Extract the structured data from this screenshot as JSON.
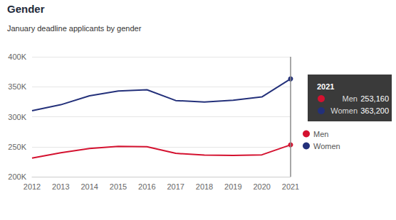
{
  "chart_data": {
    "type": "line",
    "title": "Gender",
    "subtitle": "January deadline applicants by gender",
    "categories": [
      "2012",
      "2013",
      "2014",
      "2015",
      "2016",
      "2017",
      "2018",
      "2019",
      "2020",
      "2021"
    ],
    "series": [
      {
        "name": "Men",
        "color": "#d4112f",
        "values": [
          231000,
          240000,
          247000,
          250500,
          250000,
          239000,
          236000,
          235500,
          236500,
          253160
        ]
      },
      {
        "name": "Women",
        "color": "#23307a",
        "values": [
          310000,
          320000,
          335000,
          343000,
          345000,
          327000,
          324500,
          327500,
          333000,
          363200
        ]
      }
    ],
    "ylim": [
      200000,
      400000
    ],
    "yticks": [
      {
        "value": 200000,
        "label": "200K"
      },
      {
        "value": 250000,
        "label": "250K"
      },
      {
        "value": 300000,
        "label": "300K"
      },
      {
        "value": 350000,
        "label": "350K"
      },
      {
        "value": 400000,
        "label": "400K"
      }
    ],
    "grid": true,
    "legend": "right"
  }
}
